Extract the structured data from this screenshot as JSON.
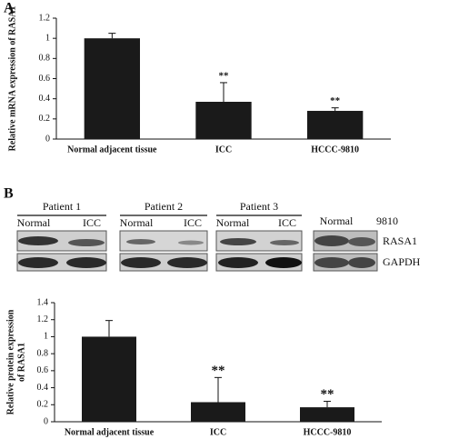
{
  "panels": [
    "A",
    "B"
  ],
  "blot": {
    "groups": [
      {
        "title": "Patient 1",
        "lanes": [
          "Normal",
          "ICC"
        ]
      },
      {
        "title": "Patient 2",
        "lanes": [
          "Normal",
          "ICC"
        ]
      },
      {
        "title": "Patient 3",
        "lanes": [
          "Normal",
          "ICC"
        ]
      }
    ],
    "cell_lanes": [
      "Normal",
      "9810"
    ],
    "rows": [
      "RASA1",
      "GAPDH"
    ]
  },
  "chart_data": [
    {
      "type": "bar",
      "ylabel": [
        "Relative mRNA expression of RASA1"
      ],
      "categories": [
        "Normal adjacent tissue",
        "ICC",
        "HCCC-9810"
      ],
      "values": [
        1.0,
        0.37,
        0.28
      ],
      "errors": [
        0.05,
        0.19,
        0.03
      ],
      "color": "#1a1a1a",
      "ylim": [
        0,
        1.2
      ],
      "yticks": [
        0,
        0.2,
        0.4,
        0.6,
        0.8,
        1,
        1.2
      ],
      "annotations": [
        {
          "x": "ICC",
          "text": "**"
        },
        {
          "x": "HCCC-9810",
          "text": "**"
        }
      ]
    },
    {
      "type": "bar",
      "ylabel": [
        "Relative protein expression",
        "of RASA1"
      ],
      "categories": [
        "Normal adjacent tissue",
        "ICC",
        "HCCC-9810"
      ],
      "values": [
        1.0,
        0.23,
        0.17
      ],
      "errors": [
        0.19,
        0.29,
        0.07
      ],
      "color": "#1a1a1a",
      "ylim": [
        0,
        1.4
      ],
      "yticks": [
        0,
        0.2,
        0.4,
        0.6,
        0.8,
        1,
        1.2,
        1.4
      ],
      "annotations": [
        {
          "x": "ICC",
          "text": "**"
        },
        {
          "x": "HCCC-9810",
          "text": "**"
        }
      ]
    }
  ]
}
